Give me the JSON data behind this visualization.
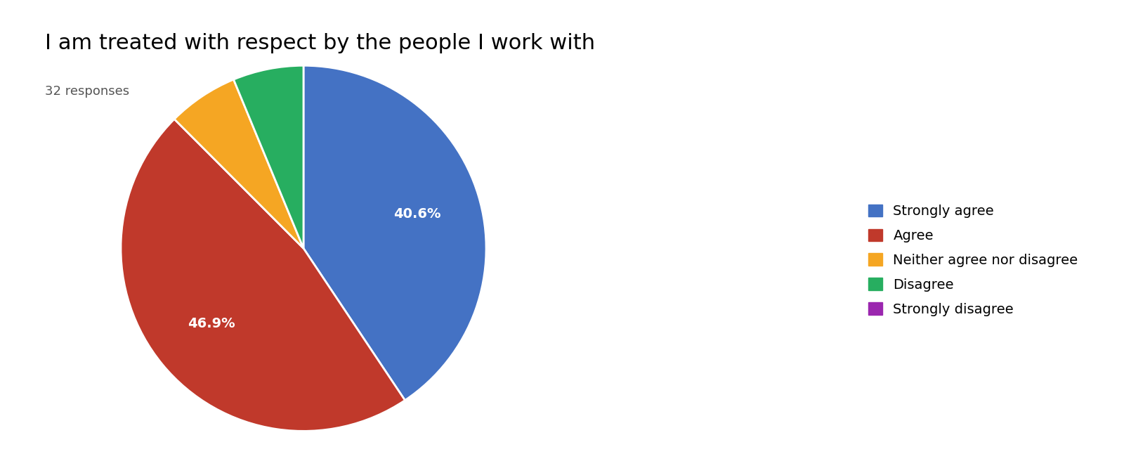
{
  "title": "I am treated with respect by the people I work with",
  "subtitle": "32 responses",
  "labels": [
    "Strongly agree",
    "Agree",
    "Neither agree nor disagree",
    "Disagree",
    "Strongly disagree"
  ],
  "values": [
    13,
    15,
    2,
    2,
    0
  ],
  "colors": [
    "#4472C4",
    "#C0392B",
    "#F5A623",
    "#27AE60",
    "#9B27AF"
  ],
  "pct_labels": [
    "40.6%",
    "46.9%",
    "",
    "",
    ""
  ],
  "title_fontsize": 22,
  "subtitle_fontsize": 13,
  "legend_fontsize": 14,
  "background_color": "#ffffff"
}
